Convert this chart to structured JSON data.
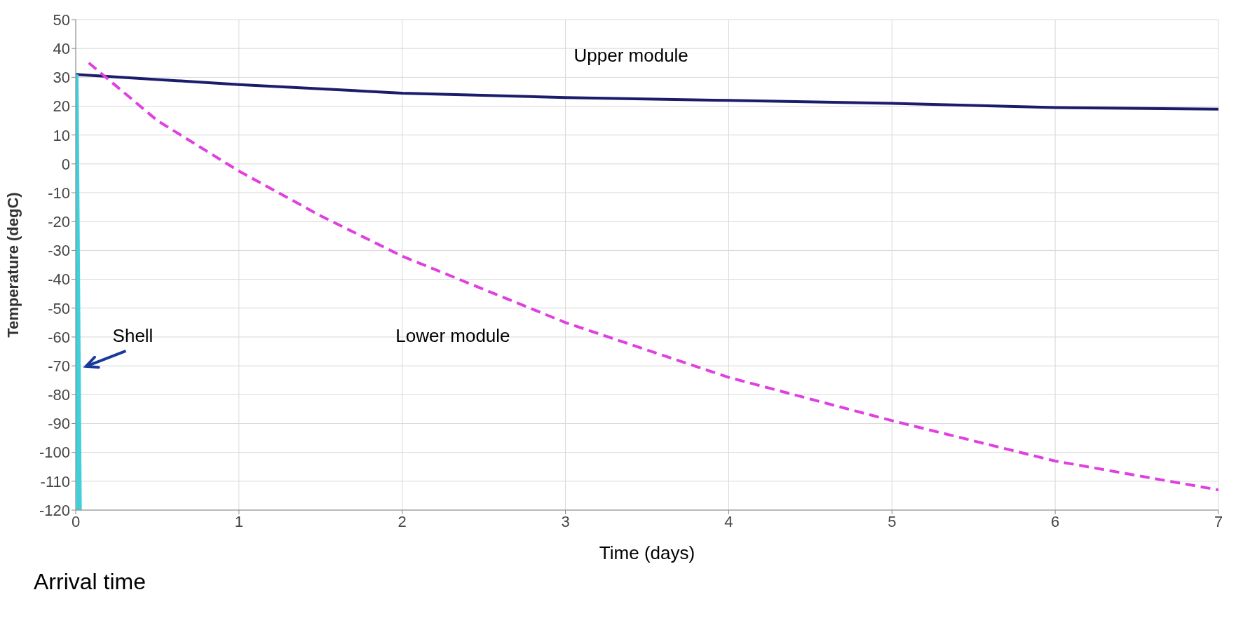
{
  "chart_data": {
    "type": "line",
    "xlabel": "Time (days)",
    "ylabel": "Temperature (degC)",
    "xlim": [
      0,
      7
    ],
    "xticks": [
      0,
      1,
      2,
      3,
      4,
      5,
      6,
      7
    ],
    "ylim": [
      -120,
      50
    ],
    "yticks": [
      -120,
      -110,
      -100,
      -90,
      -80,
      -70,
      -60,
      -50,
      -40,
      -30,
      -20,
      -10,
      0,
      10,
      20,
      30,
      40,
      50
    ],
    "grid": true,
    "legend": false,
    "marker": "none",
    "series": [
      {
        "name": "Upper module",
        "color": "#1c1c6c",
        "line_style": "solid",
        "x": [
          0,
          1,
          2,
          3,
          4,
          5,
          6,
          7
        ],
        "values": [
          31,
          27.5,
          24.5,
          23,
          22,
          21,
          19.5,
          19
        ]
      },
      {
        "name": "Lower module",
        "color": "#e040e0",
        "line_style": "dashed",
        "x": [
          0.08,
          0.5,
          1,
          1.5,
          2,
          3,
          4,
          5,
          6,
          7
        ],
        "values": [
          35,
          15,
          -2.5,
          -18,
          -32,
          -55,
          -74,
          -89,
          -103,
          -113
        ]
      },
      {
        "name": "Shell",
        "color": "#40d0dc",
        "line_style": "solid",
        "x": [
          0,
          0.02
        ],
        "values": [
          31,
          -120
        ]
      }
    ],
    "annotations": [
      "Arrival time"
    ]
  }
}
